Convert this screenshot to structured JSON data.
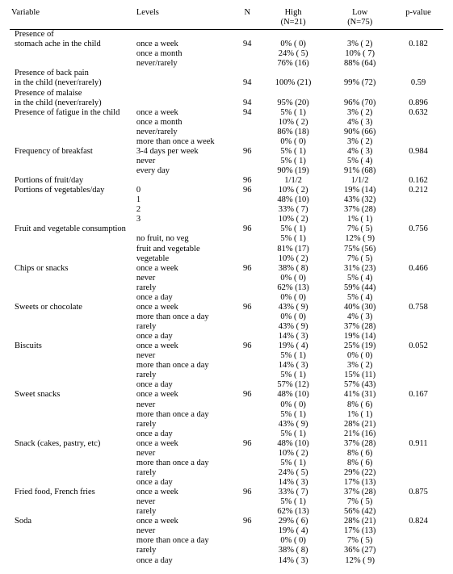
{
  "header": {
    "variable": "Variable",
    "levels": "Levels",
    "n": "N",
    "high": "High\n(N=21)",
    "low": "Low\n(N=75)",
    "pvalue": "p-value"
  },
  "rows": [
    {
      "var": "Presence of"
    },
    {
      "var": "stomach ache in the child",
      "lvl": "once a week",
      "n": "94",
      "high": "0% ( 0)",
      "low": "3% ( 2)",
      "p": "0.182"
    },
    {
      "lvl": "once a month",
      "high": "24% ( 5)",
      "low": "10% ( 7)"
    },
    {
      "lvl": "never/rarely",
      "high": "76% (16)",
      "low": "88% (64)"
    },
    {
      "var": "Presence of back pain"
    },
    {
      "var": "in the child (never/rarely)",
      "n": "94",
      "high": "100% (21)",
      "low": "99% (72)",
      "p": "0.59"
    },
    {
      "var": "Presence of malaise"
    },
    {
      "var": "in the child (never/rarely)",
      "n": "94",
      "high": "95% (20)",
      "low": "96% (70)",
      "p": "0.896"
    },
    {
      "var": "Presence of fatigue in the child",
      "lvl": "once a week",
      "n": "94",
      "high": "5% ( 1)",
      "low": "3% ( 2)",
      "p": "0.632"
    },
    {
      "lvl": "once a month",
      "high": "10% ( 2)",
      "low": "4% ( 3)"
    },
    {
      "lvl": "never/rarely",
      "high": "86% (18)",
      "low": "90% (66)"
    },
    {
      "lvl": "more than once a week",
      "high": "0% ( 0)",
      "low": "3% ( 2)"
    },
    {
      "var": "Frequency of breakfast",
      "lvl": "3-4 days per week",
      "n": "96",
      "high": "5% ( 1)",
      "low": "4% ( 3)",
      "p": "0.984"
    },
    {
      "lvl": "never",
      "high": "5% ( 1)",
      "low": "5% ( 4)"
    },
    {
      "lvl": "every day",
      "high": "90% (19)",
      "low": "91% (68)"
    },
    {
      "var": "Portions of fruit/day",
      "n": "96",
      "high": "1/1/2",
      "low": "1/1/2",
      "p": "0.162"
    },
    {
      "var": "Portions of vegetables/day",
      "lvl": "0",
      "n": "96",
      "high": "10% ( 2)",
      "low": "19% (14)",
      "p": "0.212"
    },
    {
      "lvl": "1",
      "high": "48% (10)",
      "low": "43% (32)"
    },
    {
      "lvl": "2",
      "high": "33% ( 7)",
      "low": "37% (28)"
    },
    {
      "lvl": "3",
      "high": "10% ( 2)",
      "low": "1% ( 1)"
    },
    {
      "var": "Fruit and vegetable consumption",
      "n": "96",
      "high": "5% ( 1)",
      "low": "7% ( 5)",
      "p": "0.756"
    },
    {
      "lvl": "no fruit, no veg",
      "high": "5% ( 1)",
      "low": "12% ( 9)"
    },
    {
      "lvl": "fruit and vegetable",
      "high": "81% (17)",
      "low": "75% (56)"
    },
    {
      "lvl": "vegetable",
      "high": "10% ( 2)",
      "low": "7% ( 5)"
    },
    {
      "var": "Chips or snacks",
      "lvl": "once a week",
      "n": "96",
      "high": "38% ( 8)",
      "low": "31% (23)",
      "p": "0.466"
    },
    {
      "lvl": "never",
      "high": "0% ( 0)",
      "low": "5% ( 4)"
    },
    {
      "lvl": "rarely",
      "high": "62% (13)",
      "low": "59% (44)"
    },
    {
      "lvl": "once a day",
      "high": "0% ( 0)",
      "low": "5% ( 4)"
    },
    {
      "var": "Sweets or chocolate",
      "lvl": "once a week",
      "n": "96",
      "high": "43% ( 9)",
      "low": "40% (30)",
      "p": "0.758"
    },
    {
      "lvl": "more than once a day",
      "high": "0% ( 0)",
      "low": "4% ( 3)"
    },
    {
      "lvl": "rarely",
      "high": "43% ( 9)",
      "low": "37% (28)"
    },
    {
      "lvl": "once a day",
      "high": "14% ( 3)",
      "low": "19% (14)"
    },
    {
      "var": "Biscuits",
      "lvl": "once a week",
      "n": "96",
      "high": "19% ( 4)",
      "low": "25% (19)",
      "p": "0.052"
    },
    {
      "lvl": "never",
      "high": "5% ( 1)",
      "low": "0% ( 0)"
    },
    {
      "lvl": "more than once a day",
      "high": "14% ( 3)",
      "low": "3% ( 2)"
    },
    {
      "lvl": "rarely",
      "high": "5% ( 1)",
      "low": "15% (11)"
    },
    {
      "lvl": "once a day",
      "high": "57% (12)",
      "low": "57% (43)"
    },
    {
      "var": "Sweet snacks",
      "lvl": "once a week",
      "n": "96",
      "high": "48% (10)",
      "low": "41% (31)",
      "p": "0.167"
    },
    {
      "lvl": "never",
      "high": "0% ( 0)",
      "low": "8% ( 6)"
    },
    {
      "lvl": "more than once a day",
      "high": "5% ( 1)",
      "low": "1% ( 1)"
    },
    {
      "lvl": "rarely",
      "high": "43% ( 9)",
      "low": "28% (21)"
    },
    {
      "lvl": "once a day",
      "high": "5% ( 1)",
      "low": "21% (16)"
    },
    {
      "var": "Snack (cakes, pastry, etc)",
      "lvl": "once a week",
      "n": "96",
      "high": "48% (10)",
      "low": "37% (28)",
      "p": "0.911"
    },
    {
      "lvl": "never",
      "high": "10% ( 2)",
      "low": "8% ( 6)"
    },
    {
      "lvl": "more than once a day",
      "high": "5% ( 1)",
      "low": "8% ( 6)"
    },
    {
      "lvl": "rarely",
      "high": "24% ( 5)",
      "low": "29% (22)"
    },
    {
      "lvl": "once a day",
      "high": "14% ( 3)",
      "low": "17% (13)"
    },
    {
      "var": "Fried food, French fries",
      "lvl": "once a week",
      "n": "96",
      "high": "33% ( 7)",
      "low": "37% (28)",
      "p": "0.875"
    },
    {
      "lvl": "never",
      "high": "5% ( 1)",
      "low": "7% ( 5)"
    },
    {
      "lvl": "rarely",
      "high": "62% (13)",
      "low": "56% (42)"
    },
    {
      "var": "Soda",
      "lvl": "once a week",
      "n": "96",
      "high": "29% ( 6)",
      "low": "28% (21)",
      "p": "0.824"
    },
    {
      "lvl": "never",
      "high": "19% ( 4)",
      "low": "17% (13)"
    },
    {
      "lvl": "more than once a day",
      "high": "0% ( 0)",
      "low": "7% ( 5)"
    },
    {
      "lvl": "rarely",
      "high": "38% ( 8)",
      "low": "36% (27)"
    },
    {
      "lvl": "once a day",
      "high": "14% ( 3)",
      "low": "12% ( 9)"
    }
  ]
}
